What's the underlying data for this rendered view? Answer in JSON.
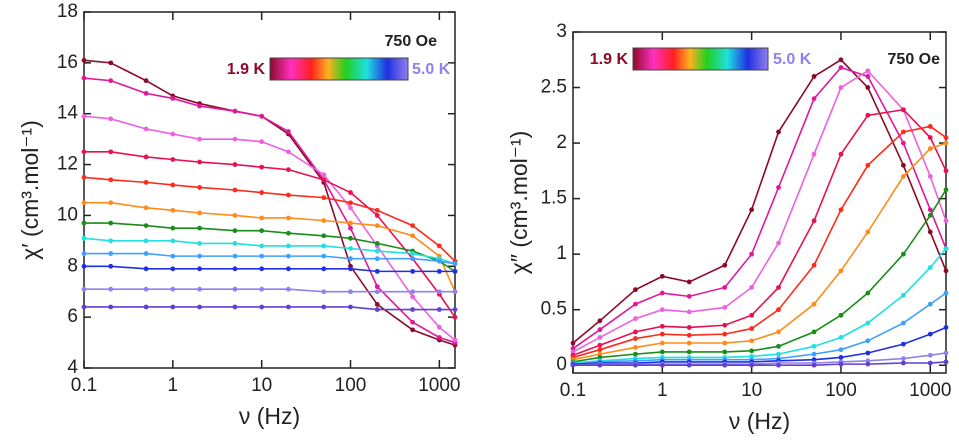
{
  "chart_data": [
    {
      "type": "line",
      "log_x": true,
      "xlabel": "ν (Hz)",
      "ylabel": "χ′ (cm³.mol⁻¹)",
      "field_label": "750 Oe",
      "t_min_label": "1.9 K",
      "t_max_label": "5.0 K",
      "xlim": [
        0.1,
        1500
      ],
      "ylim": [
        4,
        18
      ],
      "xticks": [
        0.1,
        1,
        10,
        100,
        1000
      ],
      "yticks": [
        4,
        6,
        8,
        10,
        12,
        14,
        16,
        18
      ],
      "x": [
        0.1,
        0.2,
        0.5,
        1,
        2,
        5,
        10,
        20,
        50,
        100,
        200,
        500,
        1000,
        1500
      ],
      "series": [
        {
          "color": "#8b0a2a",
          "values": [
            16.1,
            16.0,
            15.3,
            14.7,
            14.4,
            14.1,
            13.9,
            13.2,
            11.3,
            8.0,
            6.5,
            5.5,
            5.1,
            4.9
          ]
        },
        {
          "color": "#e0189a",
          "values": [
            15.4,
            15.3,
            14.8,
            14.6,
            14.3,
            14.1,
            13.9,
            13.3,
            11.4,
            9.5,
            7.2,
            5.8,
            5.2,
            5.0
          ]
        },
        {
          "color": "#ee60e0",
          "values": [
            13.9,
            13.8,
            13.4,
            13.2,
            13.0,
            13.0,
            12.9,
            12.5,
            11.6,
            10.3,
            8.8,
            6.8,
            5.6,
            5.1
          ]
        },
        {
          "color": "#e81050",
          "values": [
            12.5,
            12.5,
            12.3,
            12.2,
            12.1,
            12.0,
            11.9,
            11.8,
            11.4,
            10.9,
            10.0,
            8.3,
            6.9,
            6.0
          ]
        },
        {
          "color": "#ff2a1a",
          "values": [
            11.5,
            11.4,
            11.3,
            11.2,
            11.1,
            11.0,
            10.9,
            10.8,
            10.7,
            10.5,
            10.2,
            9.6,
            8.8,
            8.2
          ]
        },
        {
          "color": "#ff8c1a",
          "values": [
            10.5,
            10.5,
            10.3,
            10.2,
            10.1,
            10.0,
            9.9,
            9.9,
            9.8,
            9.7,
            9.6,
            9.2,
            8.4,
            7.0
          ]
        },
        {
          "color": "#1a8c1a",
          "values": [
            9.7,
            9.7,
            9.6,
            9.5,
            9.5,
            9.4,
            9.4,
            9.3,
            9.2,
            9.1,
            8.9,
            8.6,
            8.2,
            7.8
          ]
        },
        {
          "color": "#20e0e0",
          "values": [
            9.1,
            9.0,
            9.0,
            9.0,
            8.9,
            8.9,
            8.8,
            8.8,
            8.8,
            8.7,
            8.6,
            8.5,
            8.3,
            8.1
          ]
        },
        {
          "color": "#40a0ff",
          "values": [
            8.5,
            8.5,
            8.5,
            8.4,
            8.4,
            8.4,
            8.4,
            8.4,
            8.4,
            8.3,
            8.3,
            8.3,
            8.2,
            8.1
          ]
        },
        {
          "color": "#2030e0",
          "values": [
            8.0,
            8.0,
            7.9,
            7.9,
            7.9,
            7.9,
            7.9,
            7.9,
            7.9,
            7.9,
            7.8,
            7.8,
            7.8,
            7.8
          ]
        },
        {
          "color": "#9080f0",
          "values": [
            7.1,
            7.1,
            7.1,
            7.1,
            7.1,
            7.1,
            7.1,
            7.1,
            7.0,
            7.0,
            7.0,
            7.0,
            7.0,
            7.0
          ]
        },
        {
          "color": "#6040d0",
          "values": [
            6.4,
            6.4,
            6.4,
            6.4,
            6.4,
            6.4,
            6.4,
            6.4,
            6.4,
            6.4,
            6.3,
            6.3,
            6.3,
            6.3
          ]
        }
      ]
    },
    {
      "type": "line",
      "log_x": true,
      "xlabel": "ν (Hz)",
      "ylabel": "χ″ (cm³.mol⁻¹)",
      "field_label": "750 Oe",
      "t_min_label": "1.9 K",
      "t_max_label": "5.0 K",
      "xlim": [
        0.1,
        1500
      ],
      "ylim": [
        -0.07,
        3
      ],
      "xticks": [
        0.1,
        1,
        10,
        100,
        1000
      ],
      "yticks": [
        0,
        0.5,
        1,
        1.5,
        2,
        2.5,
        3
      ],
      "x": [
        0.1,
        0.2,
        0.5,
        1,
        2,
        5,
        10,
        20,
        50,
        100,
        200,
        500,
        1000,
        1500
      ],
      "series": [
        {
          "color": "#8b0a2a",
          "values": [
            0.2,
            0.4,
            0.68,
            0.8,
            0.75,
            0.9,
            1.4,
            2.1,
            2.6,
            2.75,
            2.5,
            1.8,
            1.2,
            0.85
          ]
        },
        {
          "color": "#e0189a",
          "values": [
            0.15,
            0.32,
            0.55,
            0.65,
            0.62,
            0.7,
            1.0,
            1.6,
            2.4,
            2.68,
            2.6,
            2.0,
            1.4,
            1.05
          ]
        },
        {
          "color": "#ee60e0",
          "values": [
            0.12,
            0.25,
            0.42,
            0.5,
            0.48,
            0.52,
            0.7,
            1.1,
            1.9,
            2.5,
            2.65,
            2.3,
            1.7,
            1.3
          ]
        },
        {
          "color": "#e81050",
          "values": [
            0.09,
            0.18,
            0.3,
            0.35,
            0.34,
            0.36,
            0.45,
            0.7,
            1.3,
            1.9,
            2.25,
            2.3,
            2.05,
            1.75
          ]
        },
        {
          "color": "#ff2a1a",
          "values": [
            0.07,
            0.14,
            0.24,
            0.28,
            0.27,
            0.28,
            0.33,
            0.5,
            0.9,
            1.4,
            1.8,
            2.1,
            2.15,
            2.05
          ]
        },
        {
          "color": "#ff8c1a",
          "values": [
            0.05,
            0.1,
            0.16,
            0.2,
            0.2,
            0.2,
            0.22,
            0.3,
            0.55,
            0.85,
            1.2,
            1.7,
            1.95,
            2.0
          ]
        },
        {
          "color": "#1a8c1a",
          "values": [
            0.03,
            0.07,
            0.1,
            0.12,
            0.12,
            0.12,
            0.13,
            0.17,
            0.3,
            0.45,
            0.65,
            1.0,
            1.35,
            1.58
          ]
        },
        {
          "color": "#20e0e0",
          "values": [
            0.02,
            0.04,
            0.06,
            0.07,
            0.07,
            0.07,
            0.08,
            0.1,
            0.17,
            0.25,
            0.38,
            0.63,
            0.88,
            1.05
          ]
        },
        {
          "color": "#40a0ff",
          "values": [
            0.01,
            0.03,
            0.04,
            0.05,
            0.05,
            0.05,
            0.05,
            0.06,
            0.1,
            0.14,
            0.22,
            0.38,
            0.55,
            0.65
          ]
        },
        {
          "color": "#2030e0",
          "values": [
            0.01,
            0.02,
            0.02,
            0.03,
            0.03,
            0.03,
            0.03,
            0.04,
            0.05,
            0.07,
            0.11,
            0.19,
            0.28,
            0.34
          ]
        },
        {
          "color": "#9080f0",
          "values": [
            0,
            0.01,
            0.01,
            0.01,
            0.01,
            0.01,
            0.01,
            0.02,
            0.02,
            0.03,
            0.04,
            0.06,
            0.09,
            0.11
          ]
        },
        {
          "color": "#6040d0",
          "values": [
            0,
            0,
            0,
            0,
            0,
            0,
            0,
            0,
            0,
            0.01,
            0.01,
            0.02,
            0.02,
            0.03
          ]
        }
      ]
    }
  ]
}
